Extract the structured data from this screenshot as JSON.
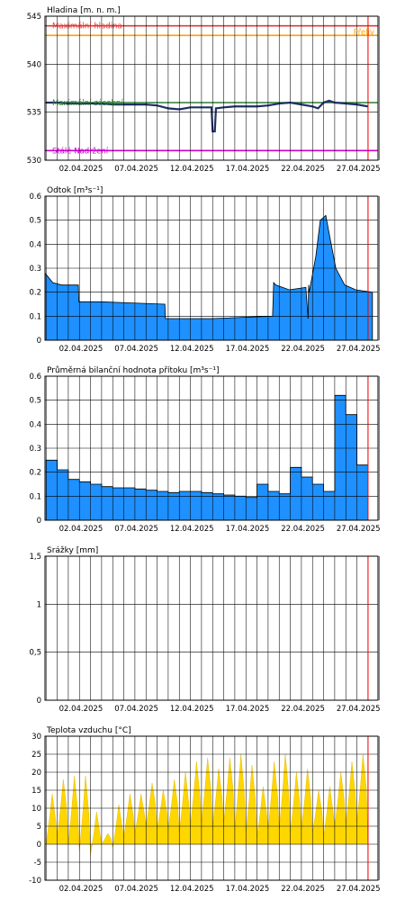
{
  "colors": {
    "frame": "#000000",
    "grid": "#000000",
    "now_line": "#ff0000",
    "bar_fill": "#1e90ff",
    "bar_stroke": "#000000",
    "temp_fill": "#ffd700",
    "level_line": "#1f2f66",
    "level_ok": "#2e7d32",
    "level_max": "#e53935",
    "level_flood": "#ffa000",
    "level_min": "#cc00cc"
  },
  "x_tick_labels": [
    "02.04.2025",
    "07.04.2025",
    "12.04.2025",
    "17.04.2025",
    "22.04.2025",
    "27.04.2025"
  ],
  "chart_data": [
    {
      "type": "line",
      "title": "Hladina [m. n. m.]",
      "ylim": [
        530,
        545
      ],
      "yticks": [
        530,
        535,
        540,
        545
      ],
      "x_start": "01.04.2025",
      "x_end": "30.04.2025",
      "references": [
        {
          "label": "Maximální hladina",
          "value": 544.0,
          "color": "#e53935"
        },
        {
          "label": "Přeliv",
          "value": 543.0,
          "color": "#ffa000"
        },
        {
          "label": "Maximální zásobní",
          "value": 536.0,
          "color": "#2e7d32"
        },
        {
          "label": "Stálé Nadržení",
          "value": 531.0,
          "color": "#cc00cc"
        }
      ],
      "series": [
        {
          "x": [
            0,
            1,
            2,
            3,
            4,
            5,
            6,
            7,
            8,
            9,
            10,
            11,
            12,
            13,
            14,
            14.9,
            15,
            15.2,
            15.3,
            16,
            17,
            18,
            19,
            20,
            21,
            22,
            23,
            24,
            24.5,
            25,
            25.5,
            26,
            27,
            28,
            29
          ],
          "y": [
            536.0,
            536.0,
            535.9,
            535.9,
            535.9,
            535.9,
            535.8,
            535.8,
            535.8,
            535.8,
            535.7,
            535.4,
            535.3,
            535.5,
            535.5,
            535.5,
            533.0,
            533.0,
            535.4,
            535.5,
            535.6,
            535.6,
            535.6,
            535.7,
            535.9,
            536.0,
            535.8,
            535.6,
            535.4,
            536.0,
            536.2,
            536.0,
            535.9,
            535.8,
            535.6
          ]
        }
      ]
    },
    {
      "type": "area",
      "title": "Odtok [m³s⁻¹]",
      "ylim": [
        0,
        0.6
      ],
      "yticks": [
        0,
        0.1,
        0.2,
        0.3,
        0.4,
        0.5,
        0.6
      ],
      "series": [
        {
          "x": [
            0,
            0.7,
            1.5,
            3,
            3.05,
            5,
            10.8,
            10.85,
            15,
            20.5,
            20.6,
            20.8,
            22,
            23.5,
            23.7,
            23.75,
            23.8,
            24.4,
            24.8,
            25.3,
            25.7,
            26.2,
            27,
            28,
            29.5
          ],
          "y": [
            0.28,
            0.24,
            0.23,
            0.23,
            0.16,
            0.16,
            0.15,
            0.09,
            0.09,
            0.1,
            0.24,
            0.23,
            0.21,
            0.22,
            0.09,
            0.23,
            0.2,
            0.35,
            0.5,
            0.52,
            0.42,
            0.3,
            0.23,
            0.21,
            0.2
          ]
        }
      ]
    },
    {
      "type": "bar",
      "title": "Průměrná bilanční hodnota přítoku  [m³s⁻¹]",
      "ylim": [
        0,
        0.6
      ],
      "yticks": [
        0,
        0.1,
        0.2,
        0.3,
        0.4,
        0.5,
        0.6
      ],
      "categories": [
        "01.04.2025",
        "02.04.2025",
        "03.04.2025",
        "04.04.2025",
        "05.04.2025",
        "06.04.2025",
        "07.04.2025",
        "08.04.2025",
        "09.04.2025",
        "10.04.2025",
        "11.04.2025",
        "12.04.2025",
        "13.04.2025",
        "14.04.2025",
        "15.04.2025",
        "16.04.2025",
        "17.04.2025",
        "18.04.2025",
        "19.04.2025",
        "20.04.2025",
        "21.04.2025",
        "22.04.2025",
        "23.04.2025",
        "24.04.2025",
        "25.04.2025",
        "26.04.2025",
        "27.04.2025",
        "28.04.2025",
        "29.04.2025",
        "30.04.2025"
      ],
      "values": [
        0.25,
        0.21,
        0.17,
        0.16,
        0.15,
        0.14,
        0.135,
        0.135,
        0.13,
        0.125,
        0.12,
        0.115,
        0.12,
        0.12,
        0.115,
        0.11,
        0.105,
        0.1,
        0.095,
        0.15,
        0.12,
        0.11,
        0.22,
        0.18,
        0.15,
        0.12,
        0.52,
        0.44,
        0.23,
        0.16
      ]
    },
    {
      "type": "bar",
      "title": "Srážky [mm]",
      "ylim": [
        0,
        1.5
      ],
      "yticks": [
        "0",
        "0,5",
        "1",
        "1,5"
      ],
      "categories": [],
      "values": []
    },
    {
      "type": "area",
      "title": "Teplota vzduchu [°C]",
      "ylim": [
        -10,
        30
      ],
      "yticks": [
        -10,
        -5,
        0,
        5,
        10,
        15,
        20,
        25,
        30
      ],
      "daily_min": [
        0,
        2,
        0,
        -2,
        -3,
        0,
        -1,
        2,
        3,
        5,
        4,
        4,
        3,
        5,
        6,
        5,
        6,
        4,
        3,
        2,
        4,
        4,
        3,
        4,
        3,
        2,
        5,
        5,
        6,
        5
      ],
      "daily_max": [
        14,
        18,
        19,
        19,
        9,
        3,
        11,
        14,
        14,
        17,
        15,
        18,
        20,
        23,
        24,
        21,
        24,
        25,
        22,
        16,
        23,
        25,
        20,
        21,
        15,
        16,
        20,
        23,
        25,
        26
      ]
    }
  ]
}
